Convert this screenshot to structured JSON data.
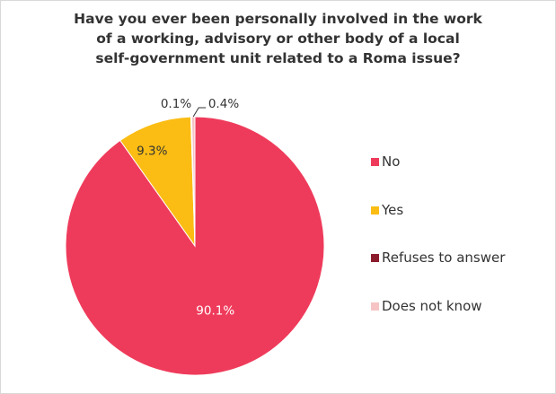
{
  "chart_data": {
    "type": "pie",
    "title_lines": [
      "Have you ever been personally involved in the work",
      "of a working, advisory or other body of a local",
      "self-government unit related to a Roma issue?"
    ],
    "categories": [
      "No",
      "Yes",
      "Refuses to answer",
      "Does not know"
    ],
    "values": [
      90.1,
      9.3,
      0.1,
      0.4
    ],
    "labels": [
      "90.1%",
      "9.3%",
      "0.1%",
      "0.4%"
    ],
    "colors": [
      "#ef3b5b",
      "#fbbd14",
      "#8b1c2c",
      "#f6c4c4"
    ],
    "legend_position": "right"
  }
}
